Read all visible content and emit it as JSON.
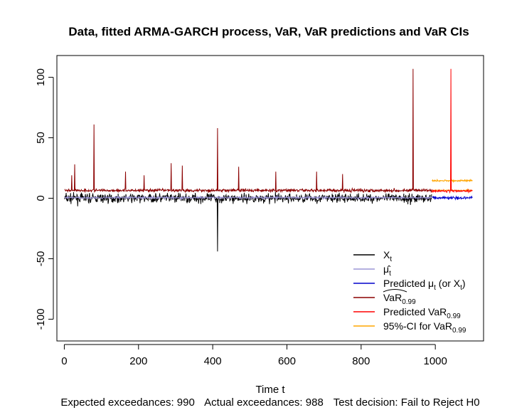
{
  "chart_data": {
    "type": "line",
    "title": "Data, fitted ARMA-GARCH process, VaR, VaR predictions and VaR CIs",
    "xlabel": "Time t",
    "ylabel": "",
    "xlim": [
      -20,
      1130
    ],
    "ylim": [
      -118,
      118
    ],
    "x_ticks": [
      0,
      200,
      400,
      600,
      800,
      1000
    ],
    "y_ticks": [
      -100,
      -50,
      0,
      50,
      100
    ],
    "grid": false,
    "legend_position": "bottom-right",
    "legend": [
      {
        "name": "X",
        "sub": "t",
        "color": "#000000"
      },
      {
        "name": "μ̂",
        "sub": "t",
        "color": "#9c95d6"
      },
      {
        "name": "Predicted μ",
        "sub": "t",
        "suffix": " (or X",
        "sub2": "t",
        "suffix2": ")",
        "color": "#0000cc"
      },
      {
        "name": "VaR",
        "sub": "0.99",
        "color": "#8b0000",
        "hat": true
      },
      {
        "name": "Predicted VaR",
        "sub": "0.99",
        "color": "#ff0000"
      },
      {
        "name": "95%-CI for VaR",
        "sub": "0.99",
        "color": "#ffa500"
      }
    ],
    "series_description": {
      "data_x": {
        "range": [
          1,
          990
        ],
        "baseline": 0,
        "noise_sd": 2.2,
        "spikes": [
          [
            413,
            -44
          ]
        ]
      },
      "fitted_var": {
        "range": [
          1,
          990
        ],
        "baseline": 6.5,
        "spikes": [
          [
            20,
            19
          ],
          [
            28,
            28
          ],
          [
            80,
            61
          ],
          [
            165,
            22
          ],
          [
            215,
            19
          ],
          [
            288,
            29
          ],
          [
            318,
            27
          ],
          [
            413,
            58
          ],
          [
            470,
            26
          ],
          [
            570,
            22
          ],
          [
            680,
            22
          ],
          [
            750,
            20
          ],
          [
            940,
            107
          ]
        ]
      },
      "predicted_mu": {
        "range": [
          991,
          1100
        ],
        "baseline": 0.5
      },
      "predicted_var": {
        "range": [
          991,
          1100
        ],
        "baseline": 6,
        "spikes": [
          [
            1042,
            107
          ]
        ]
      },
      "ci_var": {
        "range": [
          991,
          1100
        ],
        "upper": 14.5,
        "lower": 6.5
      }
    },
    "footer": {
      "expected_label": "Expected exceedances:",
      "expected_value": "990",
      "actual_label": "Actual exceedances:",
      "actual_value": "988",
      "test_label": "Test decision:",
      "test_value": "Fail to Reject H0"
    }
  }
}
